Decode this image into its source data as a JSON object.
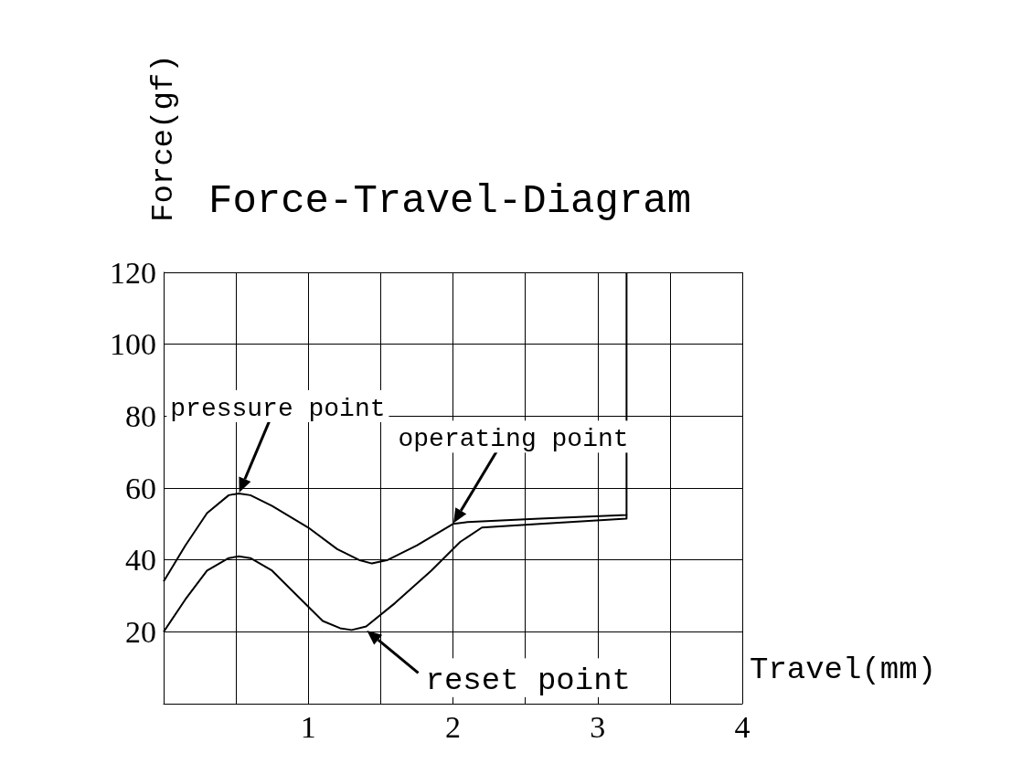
{
  "chart_data": {
    "type": "line",
    "title": "Force-Travel-Diagram",
    "xlabel": "Travel(mm)",
    "ylabel": "Force(gf)",
    "xlim": [
      0,
      4
    ],
    "xticks": [
      {
        "value": 0,
        "label": null
      },
      {
        "value": 0.5,
        "label": null
      },
      1,
      {
        "value": 1.5,
        "label": null
      },
      2,
      {
        "value": 2.5,
        "label": null
      },
      3,
      {
        "value": 3.5,
        "label": null
      },
      4
    ],
    "ylim": [
      0,
      120
    ],
    "yticks": [
      {
        "value": 0,
        "label": null
      },
      20,
      40,
      60,
      80,
      100,
      120
    ],
    "grid": true,
    "marker": "none",
    "series": [
      {
        "color": "#000000",
        "x": [
          0,
          0.15,
          0.3,
          0.45,
          0.52,
          0.6,
          0.75,
          1.0,
          1.2,
          1.35,
          1.44,
          1.55,
          1.75,
          2.0,
          2.1,
          2.6,
          3.2,
          3.2
        ],
        "values": [
          34,
          44,
          53,
          58,
          58.5,
          58,
          55,
          49,
          43,
          40,
          39,
          40,
          44,
          50,
          50.5,
          51.5,
          52.5,
          120
        ]
      },
      {
        "color": "#000000",
        "x": [
          0,
          0.15,
          0.3,
          0.45,
          0.52,
          0.6,
          0.75,
          0.95,
          1.1,
          1.22,
          1.3,
          1.4,
          1.6,
          1.85,
          2.05,
          2.2,
          2.6,
          3.2,
          3.2
        ],
        "values": [
          20,
          29,
          37,
          40.5,
          41,
          40.5,
          37,
          29,
          23,
          21,
          20.5,
          21.5,
          28,
          37,
          45,
          49,
          50,
          51.5,
          52.5
        ]
      }
    ],
    "annotations": [
      {
        "text": "pressure point",
        "x": 0.52,
        "y": 58.5
      },
      {
        "text": "operating point",
        "x": 2,
        "y": 50
      },
      {
        "text": "reset point",
        "x": 1.4,
        "y": 20.5
      }
    ]
  }
}
